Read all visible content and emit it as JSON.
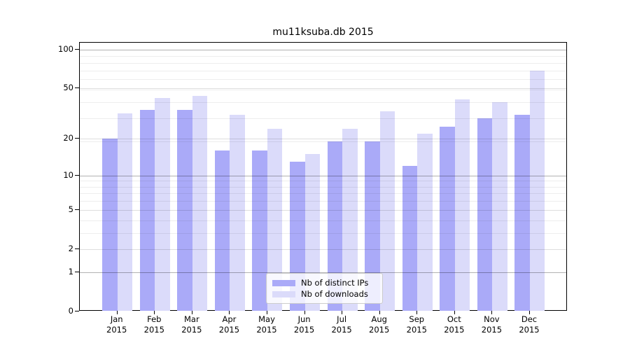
{
  "title": "mu11ksuba.db 2015",
  "chart_data": {
    "type": "bar",
    "title": "mu11ksuba.db 2015",
    "categories": [
      "Jan",
      "Feb",
      "Mar",
      "Apr",
      "May",
      "Jun",
      "Jul",
      "Aug",
      "Sep",
      "Oct",
      "Nov",
      "Dec"
    ],
    "category_year": "2015",
    "series": [
      {
        "name": "Nb of distinct IPs",
        "color": "#aaaaf8",
        "values": [
          20,
          34,
          34,
          16,
          16,
          13,
          19,
          19,
          12,
          25,
          29,
          31
        ]
      },
      {
        "name": "Nb of downloads",
        "color": "#dbdbfa",
        "values": [
          32,
          42,
          44,
          31,
          24,
          15,
          24,
          33,
          22,
          41,
          39,
          69
        ]
      }
    ],
    "y_axis": {
      "scale": "log10(1+value)",
      "ticks": [
        0,
        1,
        2,
        5,
        10,
        20,
        50,
        100
      ],
      "major_gridlines": [
        1,
        10,
        100
      ],
      "light_gridlines": [
        2,
        5,
        20,
        50
      ],
      "minor_gridlines": [
        3,
        4,
        6,
        7,
        8,
        9,
        19,
        29,
        39,
        49,
        59,
        69,
        79,
        89
      ],
      "range": [
        0,
        113
      ]
    },
    "x_axis": {
      "label_line2": "2015"
    },
    "legend": {
      "position": "bottom-center"
    },
    "grid": true
  }
}
